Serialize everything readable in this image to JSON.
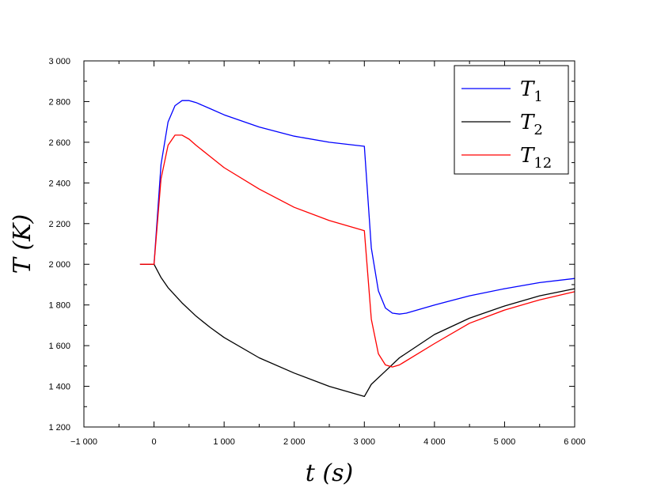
{
  "chart_data": {
    "type": "line",
    "xlabel": "t (s)",
    "ylabel": "T (K)",
    "xlim": [
      -1000,
      6000
    ],
    "ylim": [
      1200,
      3000
    ],
    "xticks": [
      -1000,
      0,
      1000,
      2000,
      3000,
      4000,
      5000,
      6000
    ],
    "yticks": [
      1200,
      1400,
      1600,
      1800,
      2000,
      2200,
      2400,
      2600,
      2800,
      3000
    ],
    "xtick_labels": [
      "−1 000",
      "0",
      "1 000",
      "2 000",
      "3 000",
      "4 000",
      "5 000",
      "6 000"
    ],
    "ytick_labels": [
      "1 200",
      "1 400",
      "1 600",
      "1 800",
      "2 000",
      "2 200",
      "2 400",
      "2 600",
      "2 800",
      "3 000"
    ],
    "grid": false,
    "legend_position": "top-right",
    "series": [
      {
        "name": "T1",
        "label_main": "T",
        "label_sub": "1",
        "color": "#0000ff",
        "x": [
          -200,
          0,
          100,
          200,
          300,
          400,
          500,
          600,
          800,
          1000,
          1500,
          2000,
          2500,
          3000,
          3100,
          3200,
          3300,
          3400,
          3500,
          3600,
          4000,
          4500,
          5000,
          5500,
          6000
        ],
        "y": [
          2000,
          2000,
          2490,
          2700,
          2780,
          2805,
          2805,
          2795,
          2765,
          2735,
          2675,
          2630,
          2600,
          2580,
          2080,
          1870,
          1785,
          1760,
          1755,
          1760,
          1800,
          1845,
          1880,
          1910,
          1930
        ]
      },
      {
        "name": "T2",
        "label_main": "T",
        "label_sub": "2",
        "color": "#000000",
        "x": [
          -200,
          0,
          100,
          200,
          400,
          600,
          800,
          1000,
          1500,
          2000,
          2500,
          3000,
          3100,
          3300,
          3500,
          4000,
          4500,
          5000,
          5500,
          6000
        ],
        "y": [
          2000,
          2000,
          1935,
          1885,
          1810,
          1745,
          1690,
          1640,
          1540,
          1465,
          1400,
          1350,
          1410,
          1475,
          1540,
          1655,
          1735,
          1795,
          1845,
          1880
        ]
      },
      {
        "name": "T12",
        "label_main": "T",
        "label_sub": "12",
        "color": "#ff0000",
        "x": [
          -200,
          0,
          100,
          200,
          300,
          400,
          500,
          600,
          800,
          1000,
          1500,
          2000,
          2500,
          3000,
          3100,
          3200,
          3300,
          3400,
          3500,
          4000,
          4500,
          5000,
          5500,
          6000
        ],
        "y": [
          2000,
          2000,
          2420,
          2585,
          2635,
          2635,
          2615,
          2585,
          2530,
          2475,
          2370,
          2280,
          2215,
          2165,
          1730,
          1560,
          1505,
          1495,
          1505,
          1610,
          1710,
          1775,
          1825,
          1865
        ]
      }
    ]
  }
}
